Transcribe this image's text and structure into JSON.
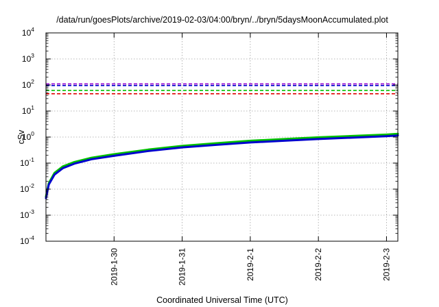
{
  "chart_data": {
    "type": "line",
    "title": "/data/run/goesPlots/archive/2019-02-03/04:00/bryn/../bryn/5daysMoonAccumulated.plot",
    "xlabel": "Coordinated Universal Time (UTC)",
    "ylabel": "cSv",
    "yscale": "log",
    "ylim": [
      0.0001,
      10000
    ],
    "xlim": [
      "2019-01-29 00:00",
      "2019-02-03 04:00"
    ],
    "grid": true,
    "x_ticks": [
      {
        "date": "2019-01-30 00:00",
        "label": "2019-1-30"
      },
      {
        "date": "2019-01-31 00:00",
        "label": "2019-1-31"
      },
      {
        "date": "2019-02-01 00:00",
        "label": "2019-2-1"
      },
      {
        "date": "2019-02-02 00:00",
        "label": "2019-2-2"
      },
      {
        "date": "2019-02-03 00:00",
        "label": "2019-2-3"
      }
    ],
    "y_ticks": [
      {
        "value": 0.0001,
        "base": "10",
        "exp": "-4"
      },
      {
        "value": 0.001,
        "base": "10",
        "exp": "-3"
      },
      {
        "value": 0.01,
        "base": "10",
        "exp": "-2"
      },
      {
        "value": 0.1,
        "base": "10",
        "exp": "-1"
      },
      {
        "value": 1,
        "base": "10",
        "exp": "0"
      },
      {
        "value": 10,
        "base": "10",
        "exp": "1"
      },
      {
        "value": 100,
        "base": "10",
        "exp": "2"
      },
      {
        "value": 1000,
        "base": "10",
        "exp": "3"
      },
      {
        "value": 10000,
        "base": "10",
        "exp": "4"
      }
    ],
    "thresholds": [
      {
        "value": 110,
        "color": "#9400d3"
      },
      {
        "value": 95,
        "color": "#0000cd"
      },
      {
        "value": 62,
        "color": "#00c000"
      },
      {
        "value": 46,
        "color": "#e00000"
      }
    ],
    "series": [
      {
        "color": "#00c000",
        "width": 3,
        "x": [
          "2019-01-29 00:00",
          "2019-01-29 01:00",
          "2019-01-29 03:00",
          "2019-01-29 06:00",
          "2019-01-29 10:00",
          "2019-01-29 16:00",
          "2019-01-30 00:00",
          "2019-01-30 12:00",
          "2019-01-31 00:00",
          "2019-01-31 12:00",
          "2019-02-01 00:00",
          "2019-02-01 12:00",
          "2019-02-02 00:00",
          "2019-02-02 12:00",
          "2019-02-03 00:00",
          "2019-02-03 04:00"
        ],
        "y": [
          0.0052,
          0.017,
          0.042,
          0.075,
          0.11,
          0.16,
          0.22,
          0.33,
          0.46,
          0.58,
          0.72,
          0.84,
          0.98,
          1.1,
          1.25,
          1.33
        ]
      },
      {
        "color": "#0000cd",
        "width": 3,
        "x": [
          "2019-01-29 00:00",
          "2019-01-29 01:00",
          "2019-01-29 03:00",
          "2019-01-29 06:00",
          "2019-01-29 10:00",
          "2019-01-29 16:00",
          "2019-01-30 00:00",
          "2019-01-30 12:00",
          "2019-01-31 00:00",
          "2019-01-31 12:00",
          "2019-02-01 00:00",
          "2019-02-01 12:00",
          "2019-02-02 00:00",
          "2019-02-02 12:00",
          "2019-02-03 00:00",
          "2019-02-03 04:00"
        ],
        "y": [
          0.0045,
          0.015,
          0.036,
          0.064,
          0.095,
          0.14,
          0.19,
          0.29,
          0.4,
          0.5,
          0.62,
          0.72,
          0.84,
          0.95,
          1.08,
          1.15
        ]
      }
    ]
  }
}
